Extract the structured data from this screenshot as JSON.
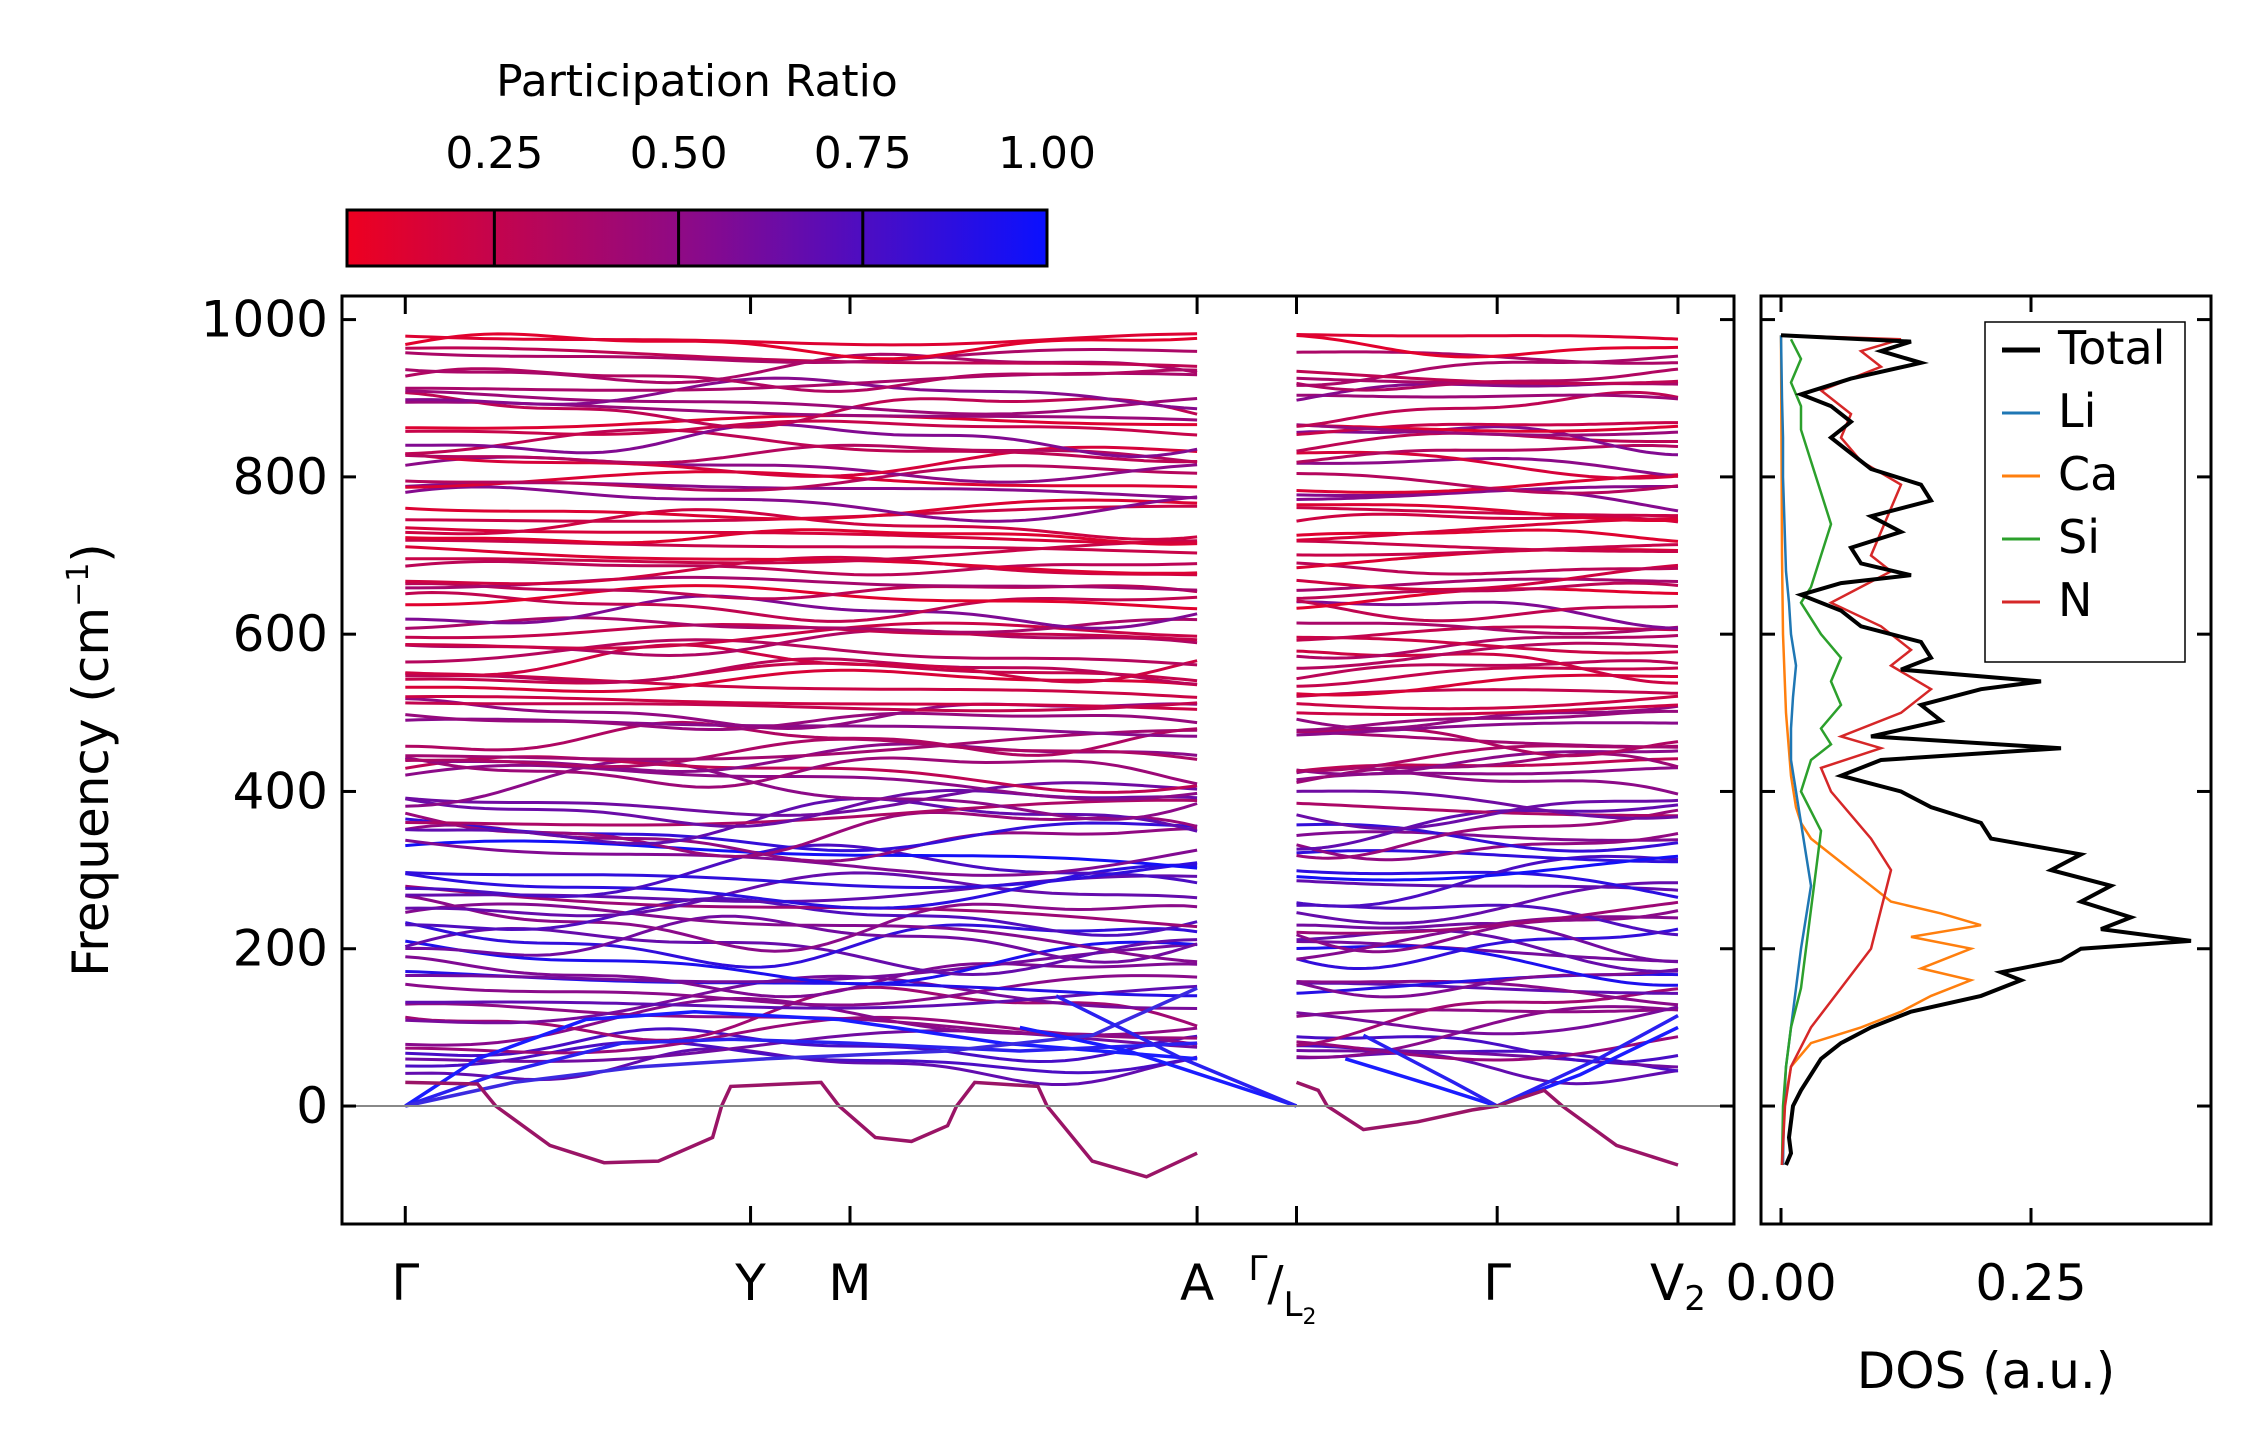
{
  "chart_data": {
    "type": "line",
    "band_structure": {
      "ylabel_main": "Frequency (cm",
      "ylabel_sup": "−1",
      "ylabel_end": ")",
      "ylim": [
        -150,
        1030
      ],
      "yticks": [
        0,
        200,
        400,
        600,
        800,
        1000
      ],
      "ytick_labels": [
        "0",
        "200",
        "400",
        "600",
        "800",
        "1000"
      ],
      "high_symmetry_points": [
        {
          "label": "Γ",
          "x": 0
        },
        {
          "label": "Y",
          "x": 1.91
        },
        {
          "label": "M",
          "x": 2.46
        },
        {
          "label": "A",
          "x": 4.38
        },
        {
          "label": "Γ/L₂",
          "label_main": "Γ",
          "label_sub": "L",
          "label_subsub": "2",
          "x": 4.93
        },
        {
          "label": "Γ",
          "x": 6.04
        },
        {
          "label": "V₂",
          "label_main": "V",
          "label_sub": "2",
          "x": 7.04
        }
      ],
      "xlim": [
        -0.35,
        7.35
      ],
      "branch_breaks": [
        4.93
      ],
      "acoustic_soft_mode_min_frequency": -75,
      "band_count_estimate": 96,
      "band_frequency_range": [
        -100,
        975
      ]
    },
    "colorbar": {
      "title": "Participation Ratio",
      "ticks": [
        0.25,
        0.5,
        0.75,
        1.0
      ],
      "tick_labels": [
        "0.25",
        "0.50",
        "0.75",
        "1.00"
      ],
      "range": [
        0.05,
        1.0
      ],
      "color_low": "#ee0020",
      "color_mid": "#8a0a8a",
      "color_high": "#0a10ff"
    },
    "dos": {
      "xlabel": "DOS (a.u.)",
      "xticks": [
        0.0,
        0.25
      ],
      "xtick_labels": [
        "0.00",
        "0.25"
      ],
      "xlim": [
        -0.02,
        0.43
      ],
      "series": [
        {
          "name": "Total",
          "color": "#000000",
          "points": [
            [
              -75,
              0.005
            ],
            [
              -60,
              0.01
            ],
            [
              -40,
              0.008
            ],
            [
              -20,
              0.01
            ],
            [
              0,
              0.012
            ],
            [
              20,
              0.02
            ],
            [
              40,
              0.03
            ],
            [
              60,
              0.04
            ],
            [
              80,
              0.06
            ],
            [
              100,
              0.09
            ],
            [
              120,
              0.13
            ],
            [
              140,
              0.2
            ],
            [
              160,
              0.24
            ],
            [
              170,
              0.22
            ],
            [
              185,
              0.28
            ],
            [
              200,
              0.3
            ],
            [
              210,
              0.41
            ],
            [
              225,
              0.32
            ],
            [
              240,
              0.35
            ],
            [
              260,
              0.3
            ],
            [
              280,
              0.33
            ],
            [
              300,
              0.27
            ],
            [
              320,
              0.3
            ],
            [
              340,
              0.21
            ],
            [
              360,
              0.2
            ],
            [
              380,
              0.15
            ],
            [
              400,
              0.12
            ],
            [
              420,
              0.06
            ],
            [
              440,
              0.1
            ],
            [
              455,
              0.28
            ],
            [
              470,
              0.09
            ],
            [
              490,
              0.16
            ],
            [
              510,
              0.14
            ],
            [
              530,
              0.2
            ],
            [
              540,
              0.26
            ],
            [
              555,
              0.12
            ],
            [
              570,
              0.15
            ],
            [
              590,
              0.14
            ],
            [
              610,
              0.08
            ],
            [
              630,
              0.06
            ],
            [
              650,
              0.02
            ],
            [
              665,
              0.06
            ],
            [
              675,
              0.13
            ],
            [
              690,
              0.08
            ],
            [
              710,
              0.07
            ],
            [
              730,
              0.12
            ],
            [
              750,
              0.09
            ],
            [
              770,
              0.15
            ],
            [
              790,
              0.14
            ],
            [
              810,
              0.09
            ],
            [
              830,
              0.07
            ],
            [
              850,
              0.05
            ],
            [
              870,
              0.07
            ],
            [
              890,
              0.05
            ],
            [
              905,
              0.02
            ],
            [
              925,
              0.07
            ],
            [
              945,
              0.14
            ],
            [
              960,
              0.1
            ],
            [
              972,
              0.13
            ],
            [
              980,
              0.0
            ]
          ]
        },
        {
          "name": "Li",
          "color": "#1f77b4",
          "points": [
            [
              -75,
              0.002
            ],
            [
              0,
              0.003
            ],
            [
              50,
              0.005
            ],
            [
              100,
              0.01
            ],
            [
              150,
              0.015
            ],
            [
              200,
              0.02
            ],
            [
              240,
              0.025
            ],
            [
              280,
              0.03
            ],
            [
              320,
              0.025
            ],
            [
              360,
              0.02
            ],
            [
              400,
              0.015
            ],
            [
              440,
              0.01
            ],
            [
              480,
              0.01
            ],
            [
              520,
              0.012
            ],
            [
              560,
              0.015
            ],
            [
              600,
              0.01
            ],
            [
              640,
              0.008
            ],
            [
              680,
              0.005
            ],
            [
              720,
              0.004
            ],
            [
              760,
              0.003
            ],
            [
              800,
              0.002
            ],
            [
              850,
              0.002
            ],
            [
              900,
              0.001
            ],
            [
              980,
              0.0
            ]
          ]
        },
        {
          "name": "Ca",
          "color": "#ff7f0e",
          "points": [
            [
              -75,
              0.001
            ],
            [
              0,
              0.003
            ],
            [
              50,
              0.01
            ],
            [
              80,
              0.03
            ],
            [
              100,
              0.08
            ],
            [
              120,
              0.12
            ],
            [
              140,
              0.15
            ],
            [
              160,
              0.19
            ],
            [
              175,
              0.14
            ],
            [
              190,
              0.17
            ],
            [
              200,
              0.19
            ],
            [
              215,
              0.13
            ],
            [
              230,
              0.2
            ],
            [
              245,
              0.16
            ],
            [
              260,
              0.11
            ],
            [
              280,
              0.09
            ],
            [
              300,
              0.07
            ],
            [
              320,
              0.05
            ],
            [
              340,
              0.03
            ],
            [
              360,
              0.02
            ],
            [
              380,
              0.015
            ],
            [
              420,
              0.01
            ],
            [
              500,
              0.005
            ],
            [
              600,
              0.002
            ],
            [
              700,
              0.001
            ],
            [
              980,
              0.0
            ]
          ]
        },
        {
          "name": "Si",
          "color": "#2ca02c",
          "points": [
            [
              -75,
              0.001
            ],
            [
              0,
              0.002
            ],
            [
              50,
              0.005
            ],
            [
              100,
              0.01
            ],
            [
              150,
              0.02
            ],
            [
              200,
              0.025
            ],
            [
              250,
              0.03
            ],
            [
              300,
              0.035
            ],
            [
              350,
              0.04
            ],
            [
              400,
              0.02
            ],
            [
              440,
              0.03
            ],
            [
              460,
              0.05
            ],
            [
              480,
              0.04
            ],
            [
              510,
              0.06
            ],
            [
              540,
              0.05
            ],
            [
              570,
              0.06
            ],
            [
              600,
              0.04
            ],
            [
              640,
              0.02
            ],
            [
              660,
              0.03
            ],
            [
              700,
              0.04
            ],
            [
              740,
              0.05
            ],
            [
              780,
              0.04
            ],
            [
              820,
              0.03
            ],
            [
              860,
              0.02
            ],
            [
              890,
              0.02
            ],
            [
              920,
              0.01
            ],
            [
              950,
              0.02
            ],
            [
              975,
              0.01
            ]
          ]
        },
        {
          "name": "N",
          "color": "#d62728",
          "points": [
            [
              -75,
              0.001
            ],
            [
              0,
              0.004
            ],
            [
              50,
              0.01
            ],
            [
              100,
              0.03
            ],
            [
              150,
              0.06
            ],
            [
              200,
              0.09
            ],
            [
              250,
              0.1
            ],
            [
              300,
              0.11
            ],
            [
              340,
              0.09
            ],
            [
              370,
              0.07
            ],
            [
              400,
              0.05
            ],
            [
              430,
              0.04
            ],
            [
              455,
              0.1
            ],
            [
              470,
              0.06
            ],
            [
              500,
              0.12
            ],
            [
              530,
              0.15
            ],
            [
              560,
              0.11
            ],
            [
              580,
              0.13
            ],
            [
              610,
              0.1
            ],
            [
              640,
              0.05
            ],
            [
              660,
              0.08
            ],
            [
              680,
              0.11
            ],
            [
              700,
              0.09
            ],
            [
              730,
              0.1
            ],
            [
              760,
              0.11
            ],
            [
              790,
              0.12
            ],
            [
              820,
              0.08
            ],
            [
              850,
              0.06
            ],
            [
              880,
              0.07
            ],
            [
              910,
              0.04
            ],
            [
              940,
              0.1
            ],
            [
              960,
              0.08
            ],
            [
              975,
              0.12
            ],
            [
              980,
              0.0
            ]
          ]
        }
      ]
    }
  }
}
